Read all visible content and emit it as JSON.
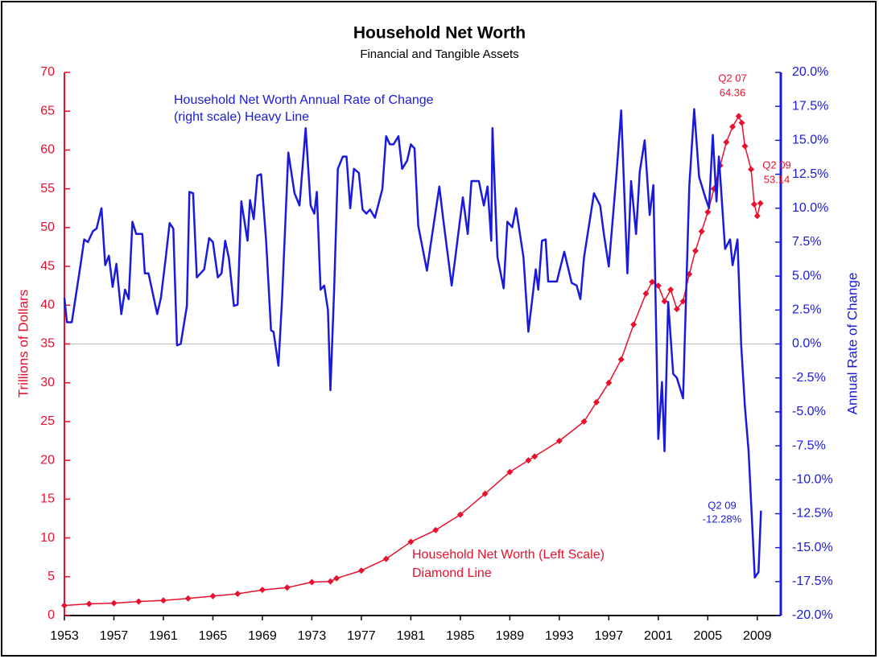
{
  "chart_data": {
    "type": "line",
    "title": "Household Net Worth",
    "subtitle": "Financial and Tangible Assets",
    "ylabel": "Trillions of Dollars",
    "y2label": "Annual Rate of Change",
    "xlim": [
      1953,
      2010.9
    ],
    "xticks": [
      1953,
      1957,
      1961,
      1965,
      1969,
      1973,
      1977,
      1981,
      1985,
      1989,
      1993,
      1997,
      2001,
      2005,
      2009
    ],
    "ylim": [
      0,
      70
    ],
    "yticks": [
      0,
      5,
      10,
      15,
      20,
      25,
      30,
      35,
      40,
      45,
      50,
      55,
      60,
      65,
      70
    ],
    "y2lim": [
      -20,
      20
    ],
    "y2ticks": [
      {
        "value": -20,
        "label": "-20.0%"
      },
      {
        "value": -17.5,
        "label": "-17.5%"
      },
      {
        "value": -15,
        "label": "-15.0%"
      },
      {
        "value": -12.5,
        "label": "-12.5%"
      },
      {
        "value": -10,
        "label": "-10.0%"
      },
      {
        "value": -7.5,
        "label": "-7.5%"
      },
      {
        "value": -5,
        "label": "-5.0%"
      },
      {
        "value": -2.5,
        "label": "-2.5%"
      },
      {
        "value": 0,
        "label": "0.0%"
      },
      {
        "value": 2.5,
        "label": "2.5%"
      },
      {
        "value": 5,
        "label": "5.0%"
      },
      {
        "value": 7.5,
        "label": "7.5%"
      },
      {
        "value": 10,
        "label": "10.0%"
      },
      {
        "value": 12.5,
        "label": "12.5%"
      },
      {
        "value": 15,
        "label": "15.0%"
      },
      {
        "value": 17.5,
        "label": "17.5%"
      },
      {
        "value": 20,
        "label": "20.0%"
      }
    ],
    "y2_reference_line": 0,
    "series": [
      {
        "name": "Household Net Worth (Left Scale)",
        "color": "#e8112d",
        "marker": "diamond",
        "x": [
          1953,
          1955,
          1957,
          1959,
          1961,
          1963,
          1965,
          1967,
          1969,
          1971,
          1973,
          1974.5,
          1975,
          1977,
          1979,
          1981,
          1983,
          1985,
          1987,
          1989,
          1990.5,
          1991,
          1993,
          1995,
          1996,
          1997,
          1998,
          1999,
          2000,
          2000.5,
          2001,
          2001.5,
          2002,
          2002.5,
          2003,
          2003.5,
          2004,
          2004.5,
          2005,
          2005.5,
          2006,
          2006.5,
          2007,
          2007.5,
          2007.75,
          2008,
          2008.5,
          2008.75,
          2009,
          2009.25
        ],
        "values": [
          1.3,
          1.5,
          1.6,
          1.8,
          1.95,
          2.2,
          2.5,
          2.8,
          3.3,
          3.6,
          4.3,
          4.4,
          4.8,
          5.8,
          7.3,
          9.5,
          11,
          13,
          15.7,
          18.5,
          20,
          20.5,
          22.5,
          25,
          27.5,
          30,
          33,
          37.5,
          41.5,
          43,
          42.5,
          40.5,
          42,
          39.5,
          40.5,
          44,
          47,
          49.5,
          52,
          55,
          58,
          61,
          63,
          64.36,
          63.5,
          60.5,
          57.5,
          53,
          51.5,
          53.14
        ]
      },
      {
        "name": "Household Net Worth Annual Rate of Change",
        "color": "#1a1adb",
        "axis": "y2",
        "x": [
          1953,
          1953.2,
          1953.6,
          1954.3,
          1954.6,
          1954.9,
          1955.3,
          1955.6,
          1956,
          1956.3,
          1956.6,
          1956.9,
          1957.2,
          1957.6,
          1957.9,
          1958.2,
          1958.5,
          1958.8,
          1959.3,
          1959.5,
          1959.8,
          1960.5,
          1960.8,
          1961.2,
          1961.5,
          1961.8,
          1962.1,
          1962.4,
          1962.9,
          1963.1,
          1963.4,
          1963.7,
          1964.3,
          1964.7,
          1965,
          1965.4,
          1965.7,
          1966,
          1966.3,
          1966.7,
          1967,
          1967.3,
          1967.8,
          1968,
          1968.3,
          1968.6,
          1968.9,
          1969.3,
          1969.7,
          1969.9,
          1970.3,
          1970.6,
          1971.1,
          1971.6,
          1972,
          1972.5,
          1972.9,
          1973.2,
          1973.4,
          1973.7,
          1974,
          1974.3,
          1974.5,
          1974.8,
          1975.1,
          1975.5,
          1975.8,
          1976.1,
          1976.4,
          1976.8,
          1977.1,
          1977.4,
          1977.7,
          1978.1,
          1978.7,
          1979,
          1979.3,
          1979.6,
          1980,
          1980.3,
          1980.7,
          1981,
          1981.3,
          1981.6,
          1982.3,
          1982.6,
          1983.3,
          1983.6,
          1984.3,
          1984.6,
          1985.2,
          1985.6,
          1985.9,
          1986.5,
          1986.9,
          1987.2,
          1987.5,
          1987.6,
          1988,
          1988.5,
          1988.8,
          1989.2,
          1989.5,
          1990.1,
          1990.5,
          1991.1,
          1991.3,
          1991.6,
          1991.9,
          1992.1,
          1992.8,
          1993.4,
          1994,
          1994.4,
          1994.7,
          1995,
          1995.8,
          1996.3,
          1996.6,
          1997,
          1997.6,
          1998,
          1998.5,
          1998.8,
          1999.2,
          1999.5,
          1999.9,
          2000.3,
          2000.6,
          2001,
          2001.3,
          2001.5,
          2001.8,
          2002.2,
          2002.5,
          2003,
          2003.5,
          2003.9,
          2004.3,
          2004.8,
          2005.1,
          2005.4,
          2005.7,
          2005.9,
          2006.4,
          2006.8,
          2007,
          2007.4,
          2007.7,
          2008,
          2008.3,
          2008.8,
          2009.1,
          2009.3
        ],
        "values": [
          3.4,
          1.6,
          1.6,
          5.8,
          7.7,
          7.5,
          8.3,
          8.5,
          10,
          5.8,
          6.5,
          4.2,
          5.9,
          2.2,
          4,
          3.3,
          9,
          8.1,
          8.1,
          5.2,
          5.2,
          2.2,
          3.4,
          6.4,
          8.9,
          8.5,
          -0.1,
          0,
          2.8,
          11.2,
          11.1,
          4.9,
          5.5,
          7.8,
          7.5,
          4.9,
          5.2,
          7.6,
          6.3,
          2.8,
          2.9,
          10.5,
          7.6,
          10.6,
          9.2,
          12.4,
          12.5,
          7.6,
          1,
          0.9,
          -1.6,
          3.4,
          14.1,
          11.1,
          10.2,
          15.9,
          10.2,
          9.6,
          11.2,
          4,
          4.3,
          2.5,
          -3.4,
          4,
          12.9,
          13.8,
          13.8,
          10,
          12.9,
          12.6,
          9.9,
          9.6,
          9.9,
          9.3,
          11.4,
          15.3,
          14.7,
          14.7,
          15.3,
          12.9,
          13.5,
          14.7,
          14.4,
          8.7,
          5.4,
          7.3,
          11.6,
          9.3,
          4.3,
          6.4,
          10.8,
          8.1,
          12,
          12,
          10.2,
          11.6,
          7.6,
          15.9,
          6.4,
          4.1,
          9,
          8.6,
          10,
          6.4,
          0.9,
          5.5,
          4,
          7.6,
          7.7,
          4.6,
          4.6,
          6.8,
          4.5,
          4.3,
          3.3,
          6.4,
          11.1,
          10.2,
          8.1,
          5.7,
          12.3,
          17.2,
          5.2,
          12,
          8.1,
          12.7,
          15,
          9.5,
          11.7,
          -7,
          -2.8,
          -7.9,
          3.1,
          -2.2,
          -2.5,
          -4,
          11.6,
          17.3,
          12.3,
          10.8,
          10,
          15.4,
          10.5,
          13.8,
          7,
          7.7,
          5.8,
          7.7,
          -0.1,
          -4.6,
          -7.9,
          -17.2,
          -16.8,
          -12.28
        ]
      }
    ],
    "annotations": [
      "Household Net Worth Annual Rate of Change",
      "(right scale) Heavy Line",
      "Household Net Worth (Left Scale)",
      "Diamond Line",
      "Q2 07",
      "64.36",
      "Q2 09",
      "53.14",
      "Q2 09",
      "-12.28%"
    ]
  }
}
